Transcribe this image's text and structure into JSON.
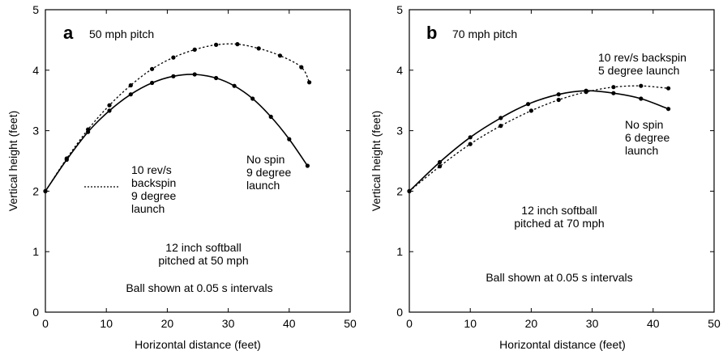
{
  "chart_data": [
    {
      "type": "line",
      "panel_label": "a",
      "title": "50 mph pitch",
      "xlabel": "Horizontal distance (feet)",
      "ylabel": "Vertical height (feet)",
      "xlim": [
        0,
        50
      ],
      "ylim": [
        0,
        5
      ],
      "xticks": [
        "0",
        "10",
        "20",
        "30",
        "40",
        "50"
      ],
      "yticks": [
        "0",
        "1",
        "2",
        "3",
        "4",
        "5"
      ],
      "series": [
        {
          "name": "10 rev/s backspin 9 degree launch",
          "style": "dotted",
          "x": [
            0,
            3.5,
            7.0,
            10.5,
            14.0,
            17.5,
            21.0,
            24.5,
            28.0,
            31.5,
            35.0,
            38.5,
            42.0,
            43.3
          ],
          "y": [
            2.0,
            2.54,
            3.02,
            3.42,
            3.75,
            4.02,
            4.21,
            4.34,
            4.42,
            4.43,
            4.36,
            4.24,
            4.05,
            3.8
          ]
        },
        {
          "name": "No spin 9 degree launch",
          "style": "solid",
          "x": [
            0,
            3.5,
            7.0,
            10.5,
            14.0,
            17.5,
            21.0,
            24.5,
            28.0,
            31.0,
            34.0,
            37.0,
            40.0,
            43.0
          ],
          "y": [
            2.0,
            2.52,
            2.98,
            3.33,
            3.6,
            3.79,
            3.9,
            3.93,
            3.87,
            3.74,
            3.53,
            3.23,
            2.86,
            2.42
          ]
        }
      ],
      "annotations": {
        "dotted_legend": [
          "10 rev/s",
          "backspin",
          "9 degree",
          "launch"
        ],
        "solid_label": [
          "No spin",
          "9 degree",
          "launch"
        ],
        "ball": [
          "12 inch  softball",
          "pitched at 50 mph"
        ],
        "intervals": "Ball shown at 0.05 s intervals"
      }
    },
    {
      "type": "line",
      "panel_label": "b",
      "title": "70 mph pitch",
      "xlabel": "Horizontal distance (feet)",
      "ylabel": "Vertical height (feet)",
      "xlim": [
        0,
        50
      ],
      "ylim": [
        0,
        5
      ],
      "xticks": [
        "0",
        "10",
        "20",
        "30",
        "40",
        "50"
      ],
      "yticks": [
        "0",
        "1",
        "2",
        "3",
        "4",
        "5"
      ],
      "series": [
        {
          "name": "10 rev/s backspin 5 degree launch",
          "style": "dotted",
          "x": [
            0,
            5.0,
            10.0,
            15.0,
            20.0,
            24.5,
            29.0,
            33.5,
            38.0,
            42.5
          ],
          "y": [
            2.0,
            2.41,
            2.78,
            3.08,
            3.33,
            3.51,
            3.64,
            3.72,
            3.74,
            3.7
          ]
        },
        {
          "name": "No spin 6 degree launch",
          "style": "solid",
          "x": [
            0,
            5.0,
            10.0,
            15.0,
            19.5,
            24.5,
            29.0,
            33.5,
            38.0,
            42.5
          ],
          "y": [
            2.0,
            2.48,
            2.89,
            3.21,
            3.44,
            3.6,
            3.66,
            3.62,
            3.53,
            3.36
          ]
        }
      ],
      "annotations": {
        "dotted_label": [
          "10 rev/s backspin",
          "5 degree launch"
        ],
        "solid_label": [
          "No spin",
          "6 degree",
          "launch"
        ],
        "ball": [
          "12 inch  softball",
          "pitched at 70 mph"
        ],
        "intervals": "Ball shown at 0.05 s intervals"
      }
    }
  ]
}
